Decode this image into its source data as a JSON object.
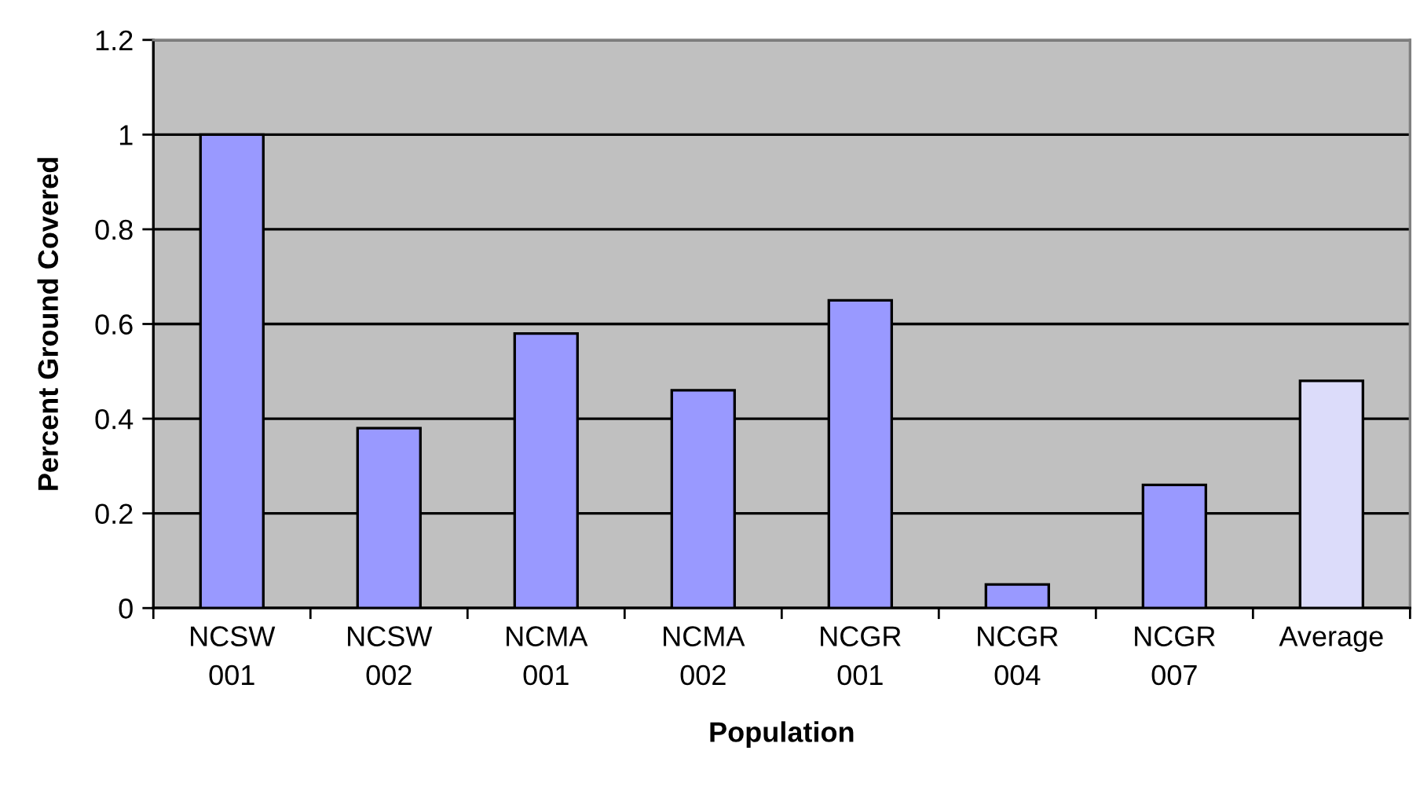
{
  "chart_data": {
    "type": "bar",
    "xlabel": "Population",
    "ylabel": "Percent Ground Covered",
    "categories": [
      "NCSW 001",
      "NCSW 002",
      "NCMA 001",
      "NCMA 002",
      "NCGR 001",
      "NCGR 004",
      "NCGR 007",
      "Average"
    ],
    "values": [
      1.0,
      0.38,
      0.58,
      0.46,
      0.65,
      0.05,
      0.26,
      0.48
    ],
    "colors": [
      "#9999ff",
      "#9999ff",
      "#9999ff",
      "#9999ff",
      "#9999ff",
      "#9999ff",
      "#9999ff",
      "#dcdcfa"
    ],
    "ylim": [
      0,
      1.2
    ],
    "yticks": [
      0,
      0.2,
      0.4,
      0.6,
      0.8,
      1,
      1.2
    ],
    "grid": "y"
  }
}
